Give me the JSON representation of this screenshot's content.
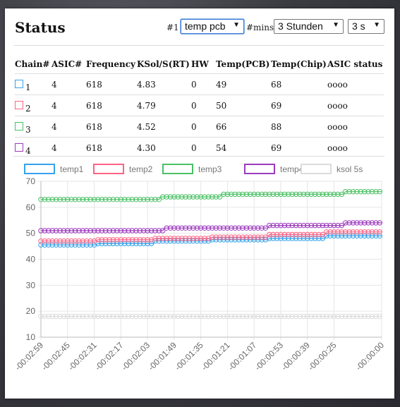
{
  "title": "Status",
  "controls": {
    "chart_label": "#1:",
    "chart_select": "temp pcb",
    "mins_label": "#mins:",
    "mins_select": "3 Stunden",
    "interval_select": "3 s"
  },
  "table": {
    "headers": [
      "Chain#",
      "ASIC#",
      "Frequency",
      "KSol/S(RT)",
      "HW",
      "Temp(PCB)",
      "Temp(Chip)",
      "ASIC status"
    ],
    "rows": [
      [
        "1",
        "4",
        "618",
        "4.83",
        "0",
        "49",
        "68",
        "oooo"
      ],
      [
        "2",
        "4",
        "618",
        "4.79",
        "0",
        "50",
        "69",
        "oooo"
      ],
      [
        "3",
        "4",
        "618",
        "4.52",
        "0",
        "66",
        "88",
        "oooo"
      ],
      [
        "4",
        "4",
        "618",
        "4.30",
        "0",
        "54",
        "69",
        "oooo"
      ]
    ],
    "chain_colors": [
      "#36a2eb",
      "#ff6384",
      "#4bc065",
      "#9c3bbd"
    ]
  },
  "chart_data": {
    "type": "line",
    "ylim": [
      10,
      70
    ],
    "yticks": [
      10,
      20,
      30,
      40,
      50,
      60,
      70
    ],
    "xlim": [
      -179,
      0
    ],
    "xtick_seconds": [
      -179,
      -165,
      -151,
      -137,
      -123,
      -109,
      -95,
      -81,
      -67,
      -53,
      -39,
      -25,
      0
    ],
    "xtick_labels": [
      "-00:02:59",
      "-00:02:45",
      "-00:02:31",
      "-00:02:17",
      "-00:02:03",
      "-00:01:49",
      "-00:01:35",
      "-00:01:21",
      "-00:01:07",
      "-00:00:53",
      "-00:00:39",
      "-00:00:25",
      "-00:00:00"
    ],
    "grid": true,
    "legend_position": "top",
    "series": [
      {
        "name": "temp1",
        "color": "#36a2eb",
        "x": [
          -179,
          -150,
          -149,
          -120,
          -119,
          -90,
          -89,
          -60,
          -59,
          -30,
          -29,
          0
        ],
        "y": [
          45.5,
          45.5,
          46,
          46,
          47,
          47,
          47.5,
          47.5,
          48,
          48,
          49,
          49
        ]
      },
      {
        "name": "temp2",
        "color": "#ff6384",
        "x": [
          -179,
          -150,
          -149,
          -120,
          -119,
          -90,
          -89,
          -60,
          -59,
          -30,
          -29,
          0
        ],
        "y": [
          47,
          47,
          47.5,
          47.5,
          48,
          48,
          48.5,
          48.5,
          49.5,
          49.5,
          50.5,
          50.5
        ]
      },
      {
        "name": "temp3",
        "color": "#4bc065",
        "x": [
          -179,
          -117,
          -116,
          -85,
          -84,
          -68,
          -67,
          -20,
          -19,
          0
        ],
        "y": [
          63,
          63,
          64,
          64,
          65,
          65,
          65,
          65,
          66,
          66
        ]
      },
      {
        "name": "temp4",
        "color": "#9c3bbd",
        "x": [
          -179,
          -115,
          -114,
          -60,
          -59,
          -20,
          -19,
          0
        ],
        "y": [
          51,
          51,
          52,
          52,
          53,
          53,
          54,
          54
        ]
      },
      {
        "name": "ksol 5s",
        "color": "#dcdcdc",
        "x": [
          -179,
          0
        ],
        "y": [
          18,
          18
        ]
      }
    ]
  }
}
